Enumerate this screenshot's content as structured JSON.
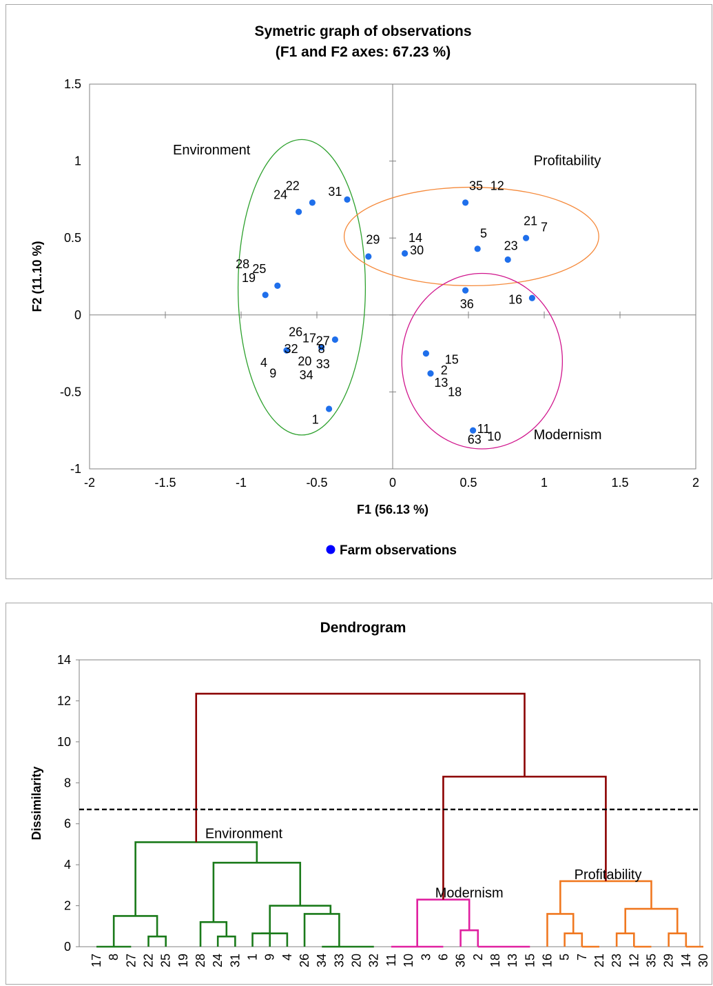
{
  "chart_data": [
    {
      "type": "scatter",
      "title": "Symetric graph of observations",
      "subtitle": "(F1 and F2 axes: 67.23 %)",
      "xlabel": "F1 (56.13 %)",
      "ylabel": "F2 (11.10 %)",
      "xlim": [
        -2,
        2
      ],
      "ylim": [
        -1,
        1.5
      ],
      "xticks": [
        "-2",
        "-1.5",
        "-1",
        "-0.5",
        "0",
        "0.5",
        "1",
        "1.5",
        "2"
      ],
      "yticks": [
        "-1",
        "-0.5",
        "0",
        "0.5",
        "1",
        "1.5"
      ],
      "grid": false,
      "legend": {
        "placement": "bottom",
        "entries": [
          {
            "label": "Farm observations",
            "color": "#0000ff"
          }
        ]
      },
      "point_color": "#1f6feb",
      "points": [
        {
          "x": -0.62,
          "y": 0.67
        },
        {
          "x": -0.53,
          "y": 0.73
        },
        {
          "x": -0.3,
          "y": 0.75
        },
        {
          "x": -0.16,
          "y": 0.38
        },
        {
          "x": 0.08,
          "y": 0.4
        },
        {
          "x": 0.48,
          "y": 0.73
        },
        {
          "x": 0.56,
          "y": 0.43
        },
        {
          "x": 0.76,
          "y": 0.36
        },
        {
          "x": 0.88,
          "y": 0.5
        },
        {
          "x": -0.76,
          "y": 0.19
        },
        {
          "x": -0.84,
          "y": 0.13
        },
        {
          "x": 0.48,
          "y": 0.16
        },
        {
          "x": 0.92,
          "y": 0.11
        },
        {
          "x": -0.38,
          "y": -0.16
        },
        {
          "x": -0.47,
          "y": -0.21
        },
        {
          "x": -0.7,
          "y": -0.23
        },
        {
          "x": 0.22,
          "y": -0.25
        },
        {
          "x": 0.25,
          "y": -0.38
        },
        {
          "x": -0.42,
          "y": -0.61
        },
        {
          "x": 0.53,
          "y": -0.75
        }
      ],
      "point_labels": [
        {
          "text": "22",
          "x": -0.66,
          "y": 0.84
        },
        {
          "text": "24",
          "x": -0.74,
          "y": 0.78
        },
        {
          "text": "31",
          "x": -0.38,
          "y": 0.8
        },
        {
          "text": "35",
          "x": 0.55,
          "y": 0.84
        },
        {
          "text": "12",
          "x": 0.69,
          "y": 0.84
        },
        {
          "text": "21",
          "x": 0.91,
          "y": 0.61
        },
        {
          "text": "7",
          "x": 1.0,
          "y": 0.57
        },
        {
          "text": "5",
          "x": 0.6,
          "y": 0.53
        },
        {
          "text": "29",
          "x": -0.13,
          "y": 0.49
        },
        {
          "text": "14",
          "x": 0.15,
          "y": 0.5
        },
        {
          "text": "30",
          "x": 0.16,
          "y": 0.42
        },
        {
          "text": "23",
          "x": 0.78,
          "y": 0.45
        },
        {
          "text": "28",
          "x": -0.99,
          "y": 0.33
        },
        {
          "text": "25",
          "x": -0.88,
          "y": 0.3
        },
        {
          "text": "19",
          "x": -0.95,
          "y": 0.24
        },
        {
          "text": "36",
          "x": 0.49,
          "y": 0.07
        },
        {
          "text": "16",
          "x": 0.81,
          "y": 0.1
        },
        {
          "text": "26",
          "x": -0.64,
          "y": -0.11
        },
        {
          "text": "17",
          "x": -0.55,
          "y": -0.15
        },
        {
          "text": "27",
          "x": -0.46,
          "y": -0.17
        },
        {
          "text": "8",
          "x": -0.47,
          "y": -0.22
        },
        {
          "text": "32",
          "x": -0.67,
          "y": -0.22
        },
        {
          "text": "20",
          "x": -0.58,
          "y": -0.3
        },
        {
          "text": "33",
          "x": -0.46,
          "y": -0.32
        },
        {
          "text": "4",
          "x": -0.85,
          "y": -0.31
        },
        {
          "text": "9",
          "x": -0.79,
          "y": -0.38
        },
        {
          "text": "34",
          "x": -0.57,
          "y": -0.39
        },
        {
          "text": "15",
          "x": 0.39,
          "y": -0.29
        },
        {
          "text": "2",
          "x": 0.34,
          "y": -0.36
        },
        {
          "text": "13",
          "x": 0.32,
          "y": -0.44
        },
        {
          "text": "18",
          "x": 0.41,
          "y": -0.5
        },
        {
          "text": "1",
          "x": -0.51,
          "y": -0.68
        },
        {
          "text": "11",
          "x": 0.6,
          "y": -0.74
        },
        {
          "text": "63",
          "x": 0.54,
          "y": -0.81
        },
        {
          "text": "10",
          "x": 0.67,
          "y": -0.79
        }
      ],
      "ellipses": [
        {
          "name": "Environment",
          "color": "#2ca02c",
          "cx": -0.6,
          "cy": 0.18,
          "rx": 0.42,
          "ry": 0.96
        },
        {
          "name": "Profitability",
          "color": "#f5893a",
          "cx": 0.52,
          "cy": 0.51,
          "rx": 0.84,
          "ry": 0.32
        },
        {
          "name": "Modernism",
          "color": "#d0148c",
          "cx": 0.59,
          "cy": -0.3,
          "rx": 0.53,
          "ry": 0.57
        }
      ],
      "annotations": [
        {
          "text": "Environment",
          "x": -1.45,
          "y": 1.07
        },
        {
          "text": "Profitability",
          "x": 0.93,
          "y": 1.0
        },
        {
          "text": "Modernism",
          "x": 0.93,
          "y": -0.78
        }
      ]
    },
    {
      "type": "dendrogram",
      "title": "Dendrogram",
      "ylabel": "Dissimilarity",
      "ylim": [
        0,
        14
      ],
      "yticks": [
        "0",
        "2",
        "4",
        "6",
        "8",
        "10",
        "12",
        "14"
      ],
      "cut_line": 6.7,
      "leaves": [
        "17",
        "8",
        "27",
        "22",
        "25",
        "19",
        "28",
        "24",
        "31",
        "1",
        "9",
        "4",
        "26",
        "34",
        "33",
        "20",
        "32",
        "11",
        "10",
        "3",
        "6",
        "36",
        "2",
        "18",
        "13",
        "15",
        "16",
        "5",
        "7",
        "21",
        "23",
        "12",
        "35",
        "29",
        "14",
        "30"
      ],
      "clusters": [
        {
          "name": "Environment",
          "color": "#1a7a1a",
          "label_x": 8.5,
          "label_y": 5.5
        },
        {
          "name": "Modernism",
          "color": "#e020a0",
          "label_x": 21.5,
          "label_y": 2.6
        },
        {
          "name": "Profitability",
          "color": "#f07820",
          "label_x": 29.5,
          "label_y": 3.5
        }
      ],
      "links_color": "#8b0000",
      "links": [
        {
          "c": 0,
          "x1": 0,
          "x2": 2,
          "y0a": 0,
          "y0b": 0,
          "h": 0
        },
        {
          "c": 0,
          "x1": 3,
          "x2": 4,
          "y0a": 0,
          "y0b": 0,
          "h": 0.5
        },
        {
          "c": 0,
          "x1": 1,
          "x2": 3.5,
          "y0a": 0,
          "y0b": 0.5,
          "h": 1.5
        },
        {
          "c": 0,
          "x1": 5,
          "x2": 5,
          "y0a": 0,
          "y0b": 0,
          "h": 0
        },
        {
          "c": 0,
          "x1": 7,
          "x2": 8,
          "y0a": 0,
          "y0b": 0,
          "h": 0.5
        },
        {
          "c": 0,
          "x1": 6,
          "x2": 7.5,
          "y0a": 0,
          "y0b": 0.5,
          "h": 1.2
        },
        {
          "c": 0,
          "x1": 9,
          "x2": 10,
          "y0a": 0,
          "y0b": 0,
          "h": 0.65
        },
        {
          "c": 0,
          "x1": 9.5,
          "x2": 11,
          "y0a": 0.65,
          "y0b": 0,
          "h": 0.65
        },
        {
          "c": 0,
          "x1": 13,
          "x2": 16,
          "y0a": 0,
          "y0b": 0,
          "h": 0
        },
        {
          "c": 0,
          "x1": 12,
          "x2": 14,
          "y0a": 0,
          "y0b": 0,
          "h": 1.6
        },
        {
          "c": 0,
          "x1": 10,
          "x2": 13.5,
          "y0a": 0.65,
          "y0b": 1.6,
          "h": 2.0
        },
        {
          "c": 0,
          "x1": 6.75,
          "x2": 11.75,
          "y0a": 1.2,
          "y0b": 2.0,
          "h": 4.1
        },
        {
          "c": 0,
          "x1": 2.25,
          "x2": 9.25,
          "y0a": 1.5,
          "y0b": 4.1,
          "h": 5.1
        },
        {
          "c": 1,
          "x1": 17,
          "x2": 20,
          "y0a": 0,
          "y0b": 0,
          "h": 0
        },
        {
          "c": 1,
          "x1": 21,
          "x2": 22,
          "y0a": 0,
          "y0b": 0,
          "h": 0.8
        },
        {
          "c": 1,
          "x1": 22,
          "x2": 25,
          "y0a": 0,
          "y0b": 0,
          "h": 0
        },
        {
          "c": 1,
          "x1": 18.5,
          "x2": 21.5,
          "y0a": 0,
          "y0b": 0.8,
          "h": 2.3
        },
        {
          "c": 2,
          "x1": 27,
          "x2": 28,
          "y0a": 0,
          "y0b": 0,
          "h": 0.65
        },
        {
          "c": 2,
          "x1": 28,
          "x2": 29,
          "y0a": 0,
          "y0b": 0,
          "h": 0
        },
        {
          "c": 2,
          "x1": 26,
          "x2": 27.5,
          "y0a": 0,
          "y0b": 0.65,
          "h": 1.6
        },
        {
          "c": 2,
          "x1": 30,
          "x2": 31,
          "y0a": 0,
          "y0b": 0,
          "h": 0.65
        },
        {
          "c": 2,
          "x1": 31,
          "x2": 32,
          "y0a": 0,
          "y0b": 0,
          "h": 0
        },
        {
          "c": 2,
          "x1": 33,
          "x2": 34,
          "y0a": 0,
          "y0b": 0,
          "h": 0.65
        },
        {
          "c": 2,
          "x1": 34,
          "x2": 35,
          "y0a": 0,
          "y0b": 0,
          "h": 0
        },
        {
          "c": 2,
          "x1": 30.5,
          "x2": 33.5,
          "y0a": 0.65,
          "y0b": 0.65,
          "h": 1.85
        },
        {
          "c": 2,
          "x1": 26.75,
          "x2": 32,
          "y0a": 1.6,
          "y0b": 1.85,
          "h": 3.2
        },
        {
          "c": -1,
          "x1": 20,
          "x2": 29.375,
          "y0a": 2.3,
          "y0b": 3.2,
          "h": 8.3
        },
        {
          "c": -1,
          "x1": 5.75,
          "x2": 24.69,
          "y0a": 5.1,
          "y0b": 8.3,
          "h": 12.35
        }
      ]
    }
  ]
}
